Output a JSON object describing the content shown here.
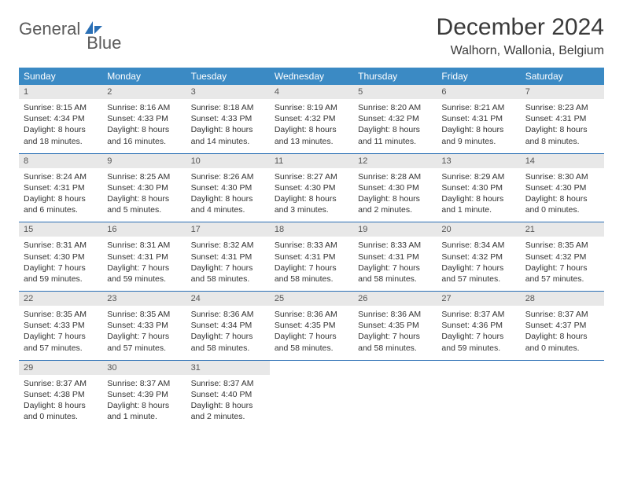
{
  "brand": {
    "word1": "General",
    "word2": "Blue"
  },
  "title": "December 2024",
  "location": "Walhorn, Wallonia, Belgium",
  "colors": {
    "header_bg": "#3b8ac4",
    "header_text": "#ffffff",
    "daynum_bg": "#e8e8e8",
    "rule": "#2a6fb5",
    "brand_gray": "#5a5a5a",
    "brand_blue": "#2a6fb5"
  },
  "weekdays": [
    "Sunday",
    "Monday",
    "Tuesday",
    "Wednesday",
    "Thursday",
    "Friday",
    "Saturday"
  ],
  "weeks": [
    [
      {
        "n": "1",
        "sunrise": "8:15 AM",
        "sunset": "4:34 PM",
        "daylight": "8 hours and 18 minutes."
      },
      {
        "n": "2",
        "sunrise": "8:16 AM",
        "sunset": "4:33 PM",
        "daylight": "8 hours and 16 minutes."
      },
      {
        "n": "3",
        "sunrise": "8:18 AM",
        "sunset": "4:33 PM",
        "daylight": "8 hours and 14 minutes."
      },
      {
        "n": "4",
        "sunrise": "8:19 AM",
        "sunset": "4:32 PM",
        "daylight": "8 hours and 13 minutes."
      },
      {
        "n": "5",
        "sunrise": "8:20 AM",
        "sunset": "4:32 PM",
        "daylight": "8 hours and 11 minutes."
      },
      {
        "n": "6",
        "sunrise": "8:21 AM",
        "sunset": "4:31 PM",
        "daylight": "8 hours and 9 minutes."
      },
      {
        "n": "7",
        "sunrise": "8:23 AM",
        "sunset": "4:31 PM",
        "daylight": "8 hours and 8 minutes."
      }
    ],
    [
      {
        "n": "8",
        "sunrise": "8:24 AM",
        "sunset": "4:31 PM",
        "daylight": "8 hours and 6 minutes."
      },
      {
        "n": "9",
        "sunrise": "8:25 AM",
        "sunset": "4:30 PM",
        "daylight": "8 hours and 5 minutes."
      },
      {
        "n": "10",
        "sunrise": "8:26 AM",
        "sunset": "4:30 PM",
        "daylight": "8 hours and 4 minutes."
      },
      {
        "n": "11",
        "sunrise": "8:27 AM",
        "sunset": "4:30 PM",
        "daylight": "8 hours and 3 minutes."
      },
      {
        "n": "12",
        "sunrise": "8:28 AM",
        "sunset": "4:30 PM",
        "daylight": "8 hours and 2 minutes."
      },
      {
        "n": "13",
        "sunrise": "8:29 AM",
        "sunset": "4:30 PM",
        "daylight": "8 hours and 1 minute."
      },
      {
        "n": "14",
        "sunrise": "8:30 AM",
        "sunset": "4:30 PM",
        "daylight": "8 hours and 0 minutes."
      }
    ],
    [
      {
        "n": "15",
        "sunrise": "8:31 AM",
        "sunset": "4:30 PM",
        "daylight": "7 hours and 59 minutes."
      },
      {
        "n": "16",
        "sunrise": "8:31 AM",
        "sunset": "4:31 PM",
        "daylight": "7 hours and 59 minutes."
      },
      {
        "n": "17",
        "sunrise": "8:32 AM",
        "sunset": "4:31 PM",
        "daylight": "7 hours and 58 minutes."
      },
      {
        "n": "18",
        "sunrise": "8:33 AM",
        "sunset": "4:31 PM",
        "daylight": "7 hours and 58 minutes."
      },
      {
        "n": "19",
        "sunrise": "8:33 AM",
        "sunset": "4:31 PM",
        "daylight": "7 hours and 58 minutes."
      },
      {
        "n": "20",
        "sunrise": "8:34 AM",
        "sunset": "4:32 PM",
        "daylight": "7 hours and 57 minutes."
      },
      {
        "n": "21",
        "sunrise": "8:35 AM",
        "sunset": "4:32 PM",
        "daylight": "7 hours and 57 minutes."
      }
    ],
    [
      {
        "n": "22",
        "sunrise": "8:35 AM",
        "sunset": "4:33 PM",
        "daylight": "7 hours and 57 minutes."
      },
      {
        "n": "23",
        "sunrise": "8:35 AM",
        "sunset": "4:33 PM",
        "daylight": "7 hours and 57 minutes."
      },
      {
        "n": "24",
        "sunrise": "8:36 AM",
        "sunset": "4:34 PM",
        "daylight": "7 hours and 58 minutes."
      },
      {
        "n": "25",
        "sunrise": "8:36 AM",
        "sunset": "4:35 PM",
        "daylight": "7 hours and 58 minutes."
      },
      {
        "n": "26",
        "sunrise": "8:36 AM",
        "sunset": "4:35 PM",
        "daylight": "7 hours and 58 minutes."
      },
      {
        "n": "27",
        "sunrise": "8:37 AM",
        "sunset": "4:36 PM",
        "daylight": "7 hours and 59 minutes."
      },
      {
        "n": "28",
        "sunrise": "8:37 AM",
        "sunset": "4:37 PM",
        "daylight": "8 hours and 0 minutes."
      }
    ],
    [
      {
        "n": "29",
        "sunrise": "8:37 AM",
        "sunset": "4:38 PM",
        "daylight": "8 hours and 0 minutes."
      },
      {
        "n": "30",
        "sunrise": "8:37 AM",
        "sunset": "4:39 PM",
        "daylight": "8 hours and 1 minute."
      },
      {
        "n": "31",
        "sunrise": "8:37 AM",
        "sunset": "4:40 PM",
        "daylight": "8 hours and 2 minutes."
      },
      null,
      null,
      null,
      null
    ]
  ],
  "labels": {
    "sunrise": "Sunrise: ",
    "sunset": "Sunset: ",
    "daylight": "Daylight: "
  }
}
